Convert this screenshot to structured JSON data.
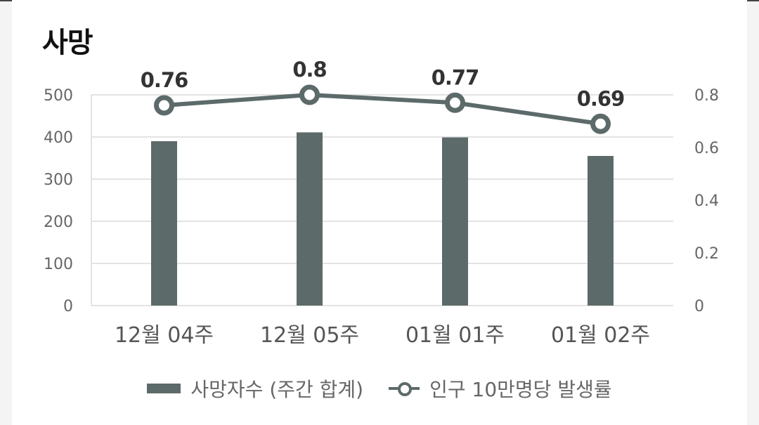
{
  "title": "사망",
  "chart_data": {
    "type": "bar+line",
    "categories": [
      "12월 04주",
      "12월 05주",
      "01월 01주",
      "01월 02주"
    ],
    "series": [
      {
        "name": "사망자수 (주간 합계)",
        "type": "bar",
        "axis": "left",
        "values": [
          390,
          411,
          399,
          355
        ]
      },
      {
        "name": "인구 10만명당 발생률",
        "type": "line",
        "axis": "right",
        "values": [
          0.76,
          0.8,
          0.77,
          0.69
        ],
        "labels": [
          "0.76",
          "0.8",
          "0.77",
          "0.69"
        ]
      }
    ],
    "y_left": {
      "range": [
        0,
        500
      ],
      "ticks": [
        "0",
        "100",
        "200",
        "300",
        "400",
        "500"
      ]
    },
    "y_right": {
      "range": [
        0,
        0.8
      ],
      "ticks": [
        "0",
        "0.2",
        "0.4",
        "0.6",
        "0.8"
      ]
    },
    "grid": true,
    "legend_position": "bottom",
    "colors": {
      "bar": "#5d6a6a",
      "line": "#5d6a6a",
      "grid": "#e3e3e3",
      "axis_text": "#666666",
      "label_text": "#333333"
    }
  },
  "legend": {
    "bar_label": "사망자수 (주간 합계)",
    "line_label": "인구 10만명당 발생률"
  }
}
